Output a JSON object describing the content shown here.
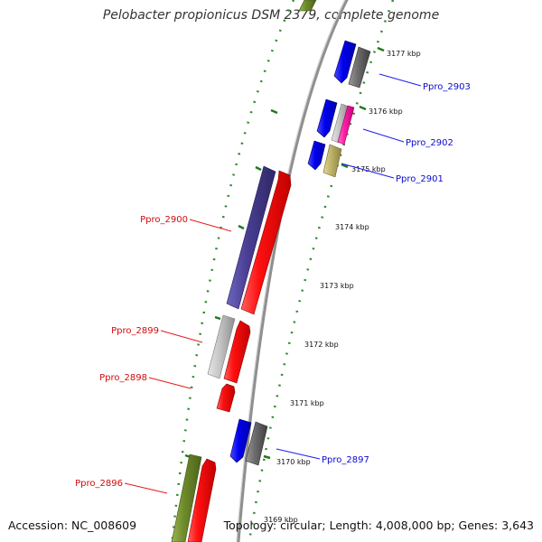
{
  "title": "Pelobacter propionicus DSM 2379, complete genome",
  "footer": {
    "accession": "Accession: NC_008609",
    "stats": "Topology: circular; Length: 4,008,000 bp; Genes: 3,643"
  },
  "colors": {
    "backbone": "#8f8f8f",
    "tick_mark": "#2e8b2e",
    "forward_label": "#0a0ad2",
    "reverse_label": "#d20a0a",
    "leader_forward": "#1e1ef0",
    "leader_reverse": "#e81a1a"
  },
  "scale_ticks": [
    "3177 kbp",
    "3176 kbp",
    "3175 kbp",
    "3174 kbp",
    "3173 kbp",
    "3172 kbp",
    "3171 kbp",
    "3170 kbp"
  ],
  "faded_tick": "3169 kbp",
  "gene_labels": {
    "forward": [
      "Ppro_2903",
      "Ppro_2902",
      "Ppro_2901",
      "Ppro_2897"
    ],
    "reverse": [
      "Ppro_2900",
      "Ppro_2899",
      "Ppro_2898",
      "Ppro_2896"
    ]
  }
}
